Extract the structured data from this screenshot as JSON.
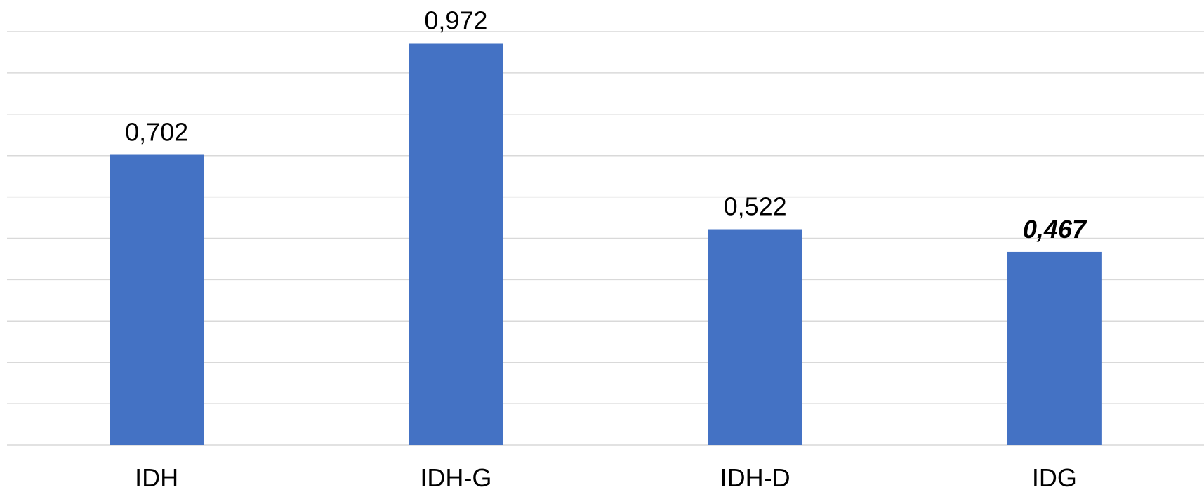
{
  "chart_data": {
    "type": "bar",
    "categories": [
      "IDH",
      "IDH-G",
      "IDH-D",
      "IDG"
    ],
    "values": [
      0.702,
      0.972,
      0.522,
      0.467
    ],
    "data_labels": [
      "0,702",
      "0,972",
      "0,522",
      "0,467"
    ],
    "emphasized_labels": [
      false,
      false,
      false,
      true
    ],
    "title": "",
    "xlabel": "",
    "ylabel": "",
    "ylim": [
      0,
      1.0
    ],
    "gridline_step": 0.1,
    "grid": true,
    "legend": "none",
    "bar_color": "#4472c4",
    "gridline_color": "#d9d9d9"
  }
}
